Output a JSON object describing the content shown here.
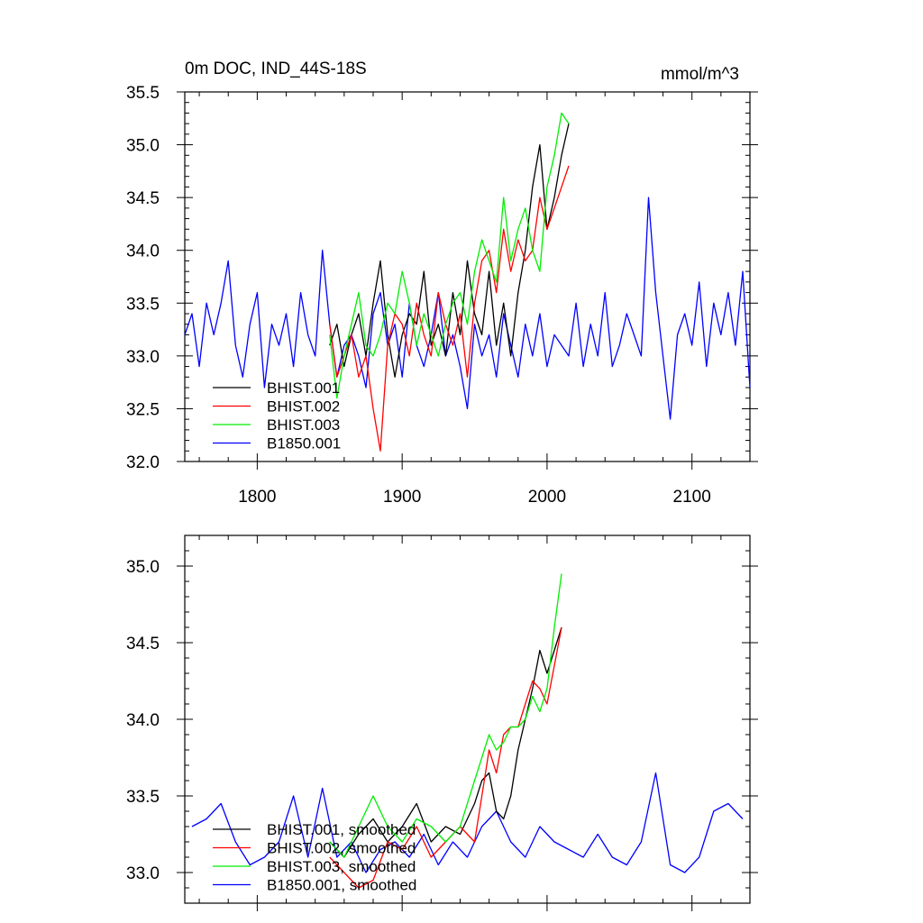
{
  "chart_data": [
    {
      "type": "line",
      "title": "0m DOC, IND_44S-18S",
      "units": "mmol/m^3",
      "xlabel": "",
      "ylabel": "",
      "xlim": [
        1750,
        2140
      ],
      "ylim": [
        32.0,
        35.5
      ],
      "yticks": [
        "32.0",
        "32.5",
        "33.0",
        "33.5",
        "34.0",
        "34.5",
        "35.0",
        "35.5"
      ],
      "xticks": [
        "1800",
        "1900",
        "2000",
        "2100"
      ],
      "legend_position": "bottom-left",
      "series": [
        {
          "name": "BHIST.001",
          "color": "#000000",
          "x": [
            1850,
            1855,
            1860,
            1865,
            1870,
            1875,
            1880,
            1885,
            1890,
            1895,
            1900,
            1905,
            1910,
            1915,
            1920,
            1925,
            1930,
            1935,
            1940,
            1945,
            1950,
            1955,
            1960,
            1965,
            1970,
            1975,
            1980,
            1985,
            1990,
            1995,
            2000,
            2005,
            2010,
            2015
          ],
          "y": [
            33.1,
            33.3,
            32.9,
            33.2,
            33.4,
            33.0,
            33.5,
            33.9,
            33.2,
            32.8,
            33.2,
            33.4,
            33.3,
            33.8,
            33.1,
            33.3,
            33.0,
            33.6,
            33.2,
            33.9,
            33.4,
            33.2,
            33.8,
            33.1,
            33.5,
            33.0,
            33.6,
            34.0,
            34.6,
            35.0,
            34.2,
            34.5,
            34.9,
            35.2
          ]
        },
        {
          "name": "BHIST.002",
          "color": "#ff0000",
          "x": [
            1850,
            1855,
            1860,
            1865,
            1870,
            1875,
            1880,
            1885,
            1890,
            1895,
            1900,
            1905,
            1910,
            1915,
            1920,
            1925,
            1930,
            1935,
            1940,
            1945,
            1950,
            1955,
            1960,
            1965,
            1970,
            1975,
            1980,
            1985,
            1990,
            1995,
            2000,
            2005,
            2010,
            2015
          ],
          "y": [
            33.3,
            32.8,
            33.0,
            33.2,
            32.8,
            33.0,
            32.5,
            32.1,
            33.1,
            33.4,
            33.3,
            33.0,
            33.5,
            33.2,
            33.0,
            33.6,
            33.3,
            33.1,
            33.4,
            32.8,
            33.5,
            33.9,
            34.0,
            33.6,
            34.2,
            33.8,
            34.1,
            33.9,
            34.0,
            34.5,
            34.2,
            34.4,
            34.6,
            34.8
          ]
        },
        {
          "name": "BHIST.003",
          "color": "#00ee00",
          "x": [
            1850,
            1855,
            1860,
            1865,
            1870,
            1875,
            1880,
            1885,
            1890,
            1895,
            1900,
            1905,
            1910,
            1915,
            1920,
            1925,
            1930,
            1935,
            1940,
            1945,
            1950,
            1955,
            1960,
            1965,
            1970,
            1975,
            1980,
            1985,
            1990,
            1995,
            2000,
            2005,
            2010,
            2015
          ],
          "y": [
            33.2,
            32.6,
            33.0,
            33.3,
            33.6,
            33.1,
            33.0,
            33.2,
            33.5,
            33.4,
            33.8,
            33.5,
            33.1,
            33.4,
            33.2,
            33.0,
            33.3,
            33.5,
            33.6,
            33.3,
            33.8,
            34.1,
            33.9,
            33.7,
            34.5,
            33.9,
            34.2,
            34.4,
            34.0,
            33.8,
            34.6,
            34.9,
            35.3,
            35.2
          ]
        },
        {
          "name": "B1850.001",
          "color": "#0000ff",
          "x": [
            1750,
            1755,
            1760,
            1765,
            1770,
            1775,
            1780,
            1785,
            1790,
            1795,
            1800,
            1805,
            1810,
            1815,
            1820,
            1825,
            1830,
            1835,
            1840,
            1845,
            1850,
            1855,
            1860,
            1865,
            1870,
            1875,
            1880,
            1885,
            1890,
            1895,
            1900,
            1905,
            1910,
            1915,
            1920,
            1925,
            1930,
            1935,
            1940,
            1945,
            1950,
            1955,
            1960,
            1965,
            1970,
            1975,
            1980,
            1985,
            1990,
            1995,
            2000,
            2005,
            2010,
            2015,
            2020,
            2025,
            2030,
            2035,
            2040,
            2045,
            2050,
            2055,
            2060,
            2065,
            2070,
            2075,
            2080,
            2085,
            2090,
            2095,
            2100,
            2105,
            2110,
            2115,
            2120,
            2125,
            2130,
            2135,
            2140
          ],
          "y": [
            33.2,
            33.4,
            32.9,
            33.5,
            33.2,
            33.5,
            33.9,
            33.1,
            32.8,
            33.3,
            33.6,
            32.7,
            33.3,
            33.1,
            33.4,
            32.9,
            33.6,
            33.2,
            33.0,
            34.0,
            33.3,
            32.8,
            33.1,
            33.2,
            33.0,
            32.7,
            33.4,
            33.6,
            33.1,
            33.3,
            32.8,
            33.5,
            33.1,
            32.9,
            33.2,
            33.6,
            33.0,
            33.2,
            32.9,
            32.5,
            33.3,
            33.0,
            33.2,
            32.8,
            33.4,
            33.1,
            32.8,
            33.3,
            33.0,
            33.4,
            32.9,
            33.2,
            33.1,
            33.0,
            33.5,
            32.9,
            33.3,
            33.0,
            33.6,
            32.9,
            33.1,
            33.4,
            33.2,
            33.0,
            34.5,
            33.6,
            33.0,
            32.4,
            33.2,
            33.4,
            33.1,
            33.7,
            32.9,
            33.5,
            33.2,
            33.6,
            33.1,
            33.8,
            32.7
          ]
        }
      ]
    },
    {
      "type": "line",
      "title": "",
      "xlabel": "",
      "ylabel": "",
      "xlim": [
        1750,
        2140
      ],
      "ylim": [
        32.8,
        35.2
      ],
      "yticks": [
        "33.0",
        "33.5",
        "34.0",
        "34.5",
        "35.0"
      ],
      "legend_position": "bottom-left",
      "series": [
        {
          "name": "BHIST.001, smoothed",
          "color": "#000000",
          "x": [
            1850,
            1860,
            1870,
            1880,
            1890,
            1900,
            1910,
            1920,
            1930,
            1940,
            1950,
            1955,
            1960,
            1965,
            1970,
            1975,
            1980,
            1985,
            1990,
            1995,
            2000,
            2005,
            2010
          ],
          "y": [
            33.2,
            33.1,
            33.25,
            33.35,
            33.2,
            33.3,
            33.45,
            33.2,
            33.3,
            33.25,
            33.45,
            33.6,
            33.65,
            33.4,
            33.35,
            33.5,
            33.8,
            34.0,
            34.2,
            34.45,
            34.3,
            34.45,
            34.6
          ]
        },
        {
          "name": "BHIST.002, smoothed",
          "color": "#ff0000",
          "x": [
            1850,
            1860,
            1870,
            1880,
            1890,
            1900,
            1910,
            1920,
            1930,
            1940,
            1950,
            1955,
            1960,
            1965,
            1970,
            1975,
            1980,
            1985,
            1990,
            1995,
            2000,
            2005,
            2010
          ],
          "y": [
            33.1,
            33.0,
            32.9,
            32.95,
            33.2,
            33.15,
            33.3,
            33.1,
            33.2,
            33.3,
            33.2,
            33.5,
            33.8,
            33.65,
            33.9,
            33.95,
            33.95,
            34.1,
            34.25,
            34.2,
            34.1,
            34.35,
            34.6
          ]
        },
        {
          "name": "BHIST.003, smoothed",
          "color": "#00ee00",
          "x": [
            1850,
            1860,
            1870,
            1880,
            1890,
            1900,
            1910,
            1920,
            1930,
            1940,
            1950,
            1955,
            1960,
            1965,
            1970,
            1975,
            1980,
            1985,
            1990,
            1995,
            2000,
            2005,
            2010
          ],
          "y": [
            33.2,
            33.1,
            33.3,
            33.5,
            33.3,
            33.2,
            33.35,
            33.3,
            33.2,
            33.3,
            33.6,
            33.75,
            33.9,
            33.8,
            33.85,
            33.95,
            33.95,
            34.0,
            34.15,
            34.05,
            34.2,
            34.6,
            34.95
          ]
        },
        {
          "name": "B1850.001, smoothed",
          "color": "#0000ff",
          "x": [
            1755,
            1765,
            1775,
            1785,
            1795,
            1805,
            1815,
            1825,
            1835,
            1845,
            1855,
            1865,
            1875,
            1885,
            1895,
            1905,
            1915,
            1925,
            1935,
            1945,
            1955,
            1965,
            1975,
            1985,
            1995,
            2005,
            2015,
            2025,
            2035,
            2045,
            2055,
            2065,
            2075,
            2085,
            2095,
            2105,
            2115,
            2125,
            2135
          ],
          "y": [
            33.3,
            33.35,
            33.45,
            33.2,
            33.05,
            33.1,
            33.2,
            33.5,
            33.1,
            33.55,
            33.1,
            33.2,
            33.0,
            33.15,
            33.2,
            33.1,
            33.25,
            33.05,
            33.2,
            33.1,
            33.3,
            33.4,
            33.2,
            33.1,
            33.3,
            33.2,
            33.15,
            33.1,
            33.25,
            33.1,
            33.05,
            33.2,
            33.65,
            33.05,
            33.0,
            33.1,
            33.4,
            33.45,
            33.35
          ]
        }
      ]
    }
  ]
}
